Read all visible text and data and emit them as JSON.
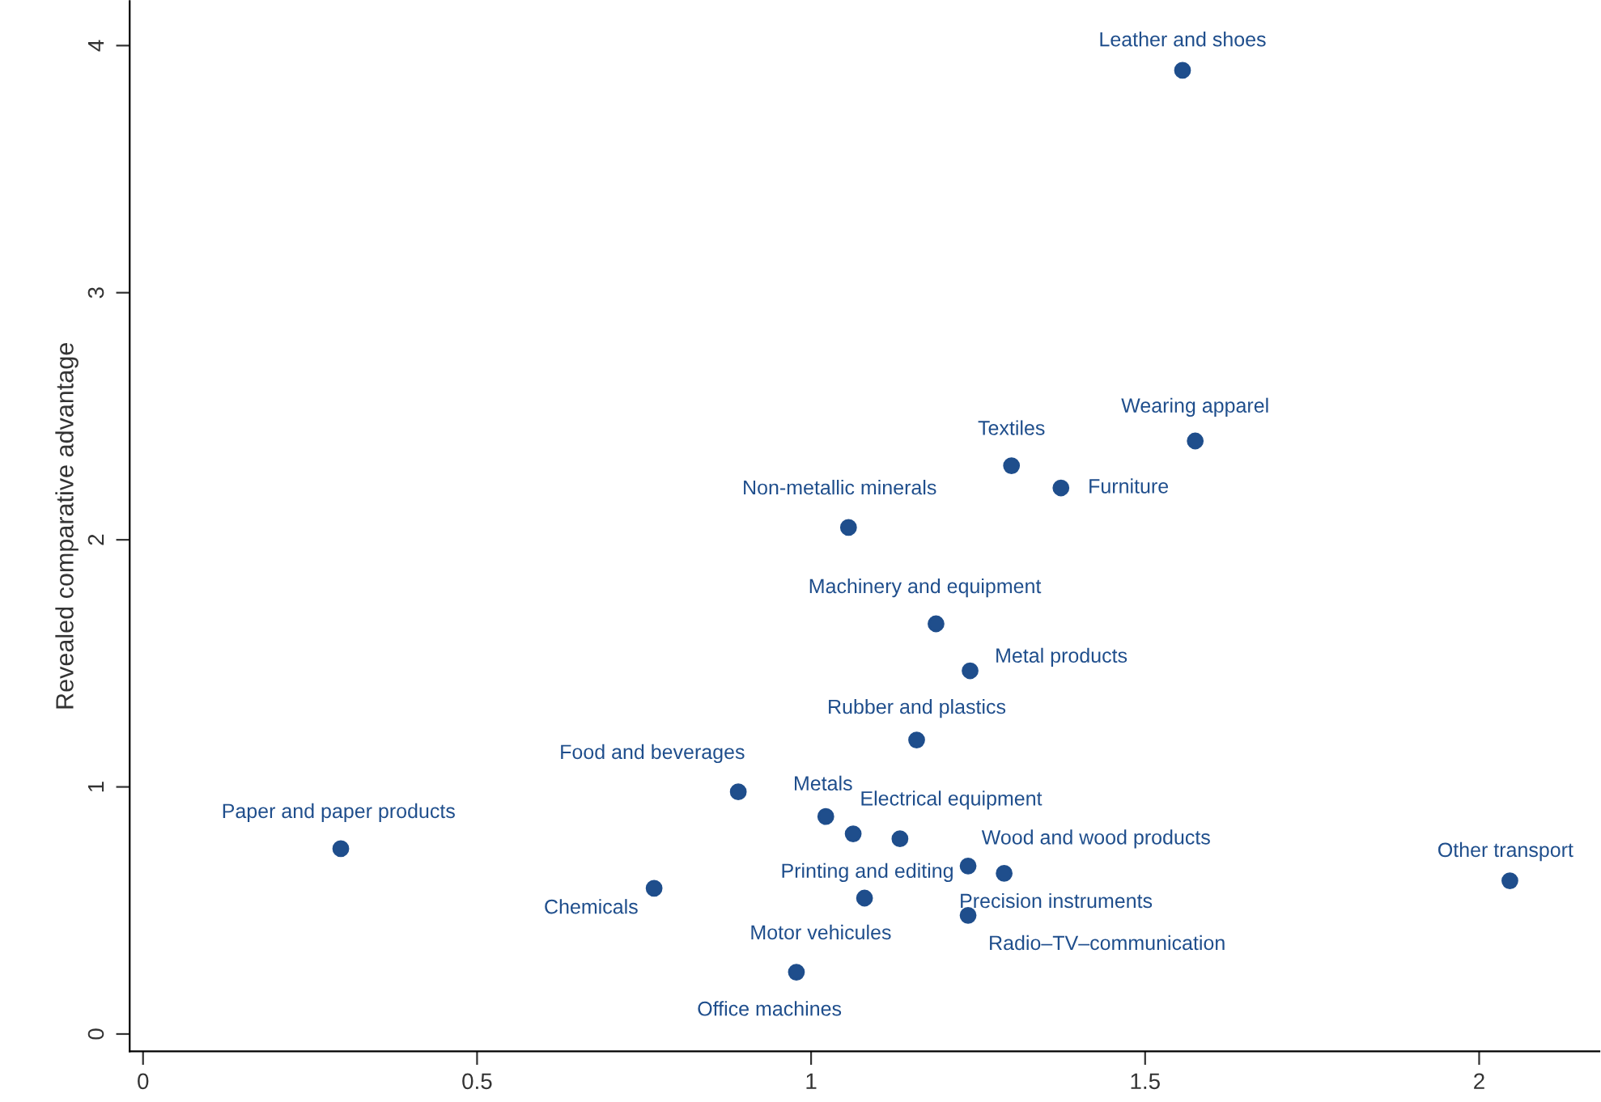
{
  "chart_data": {
    "type": "scatter",
    "ylabel": "Revealed comparative advantage",
    "xlim": [
      -0.02,
      2.18
    ],
    "ylim": [
      -0.07,
      4.18
    ],
    "xticks": [
      0,
      0.5,
      1,
      1.5,
      2
    ],
    "yticks": [
      0,
      1,
      2,
      3,
      4
    ],
    "grid": false,
    "legend": false,
    "marker": "circle",
    "series": [
      {
        "color": "#1f4e8c",
        "x": [
          1.556,
          1.575,
          1.3,
          1.374,
          1.056,
          1.187,
          1.238,
          1.158,
          0.891,
          1.022,
          1.063,
          1.133,
          1.235,
          1.289,
          1.08,
          1.235,
          0.978,
          0.765,
          0.296,
          2.046
        ],
        "values": [
          3.9,
          2.4,
          2.3,
          2.21,
          2.05,
          1.66,
          1.47,
          1.19,
          0.98,
          0.88,
          0.81,
          0.79,
          0.68,
          0.65,
          0.55,
          0.48,
          0.25,
          0.59,
          0.75,
          0.62
        ]
      }
    ],
    "annotations": [
      {
        "text": "Leather and shoes",
        "x": 1.556,
        "y": 3.9
      },
      {
        "text": "Wearing apparel",
        "x": 1.575,
        "y": 2.4
      },
      {
        "text": "Textiles",
        "x": 1.3,
        "y": 2.3
      },
      {
        "text": "Furniture",
        "x": 1.374,
        "y": 2.21
      },
      {
        "text": "Non-metallic minerals",
        "x": 1.056,
        "y": 2.05
      },
      {
        "text": "Machinery and equipment",
        "x": 1.187,
        "y": 1.66
      },
      {
        "text": "Metal products",
        "x": 1.238,
        "y": 1.47
      },
      {
        "text": "Rubber and plastics",
        "x": 1.158,
        "y": 1.19
      },
      {
        "text": "Food and beverages",
        "x": 0.891,
        "y": 0.98
      },
      {
        "text": "Metals",
        "x": 1.022,
        "y": 0.88
      },
      {
        "text": "Electrical equipment",
        "x": 1.063,
        "y": 0.81
      },
      {
        "text": "Printing and editing",
        "x": 1.133,
        "y": 0.79
      },
      {
        "text": "Wood and wood products",
        "x": 1.235,
        "y": 0.68
      },
      {
        "text": "Precision instruments",
        "x": 1.289,
        "y": 0.65
      },
      {
        "text": "Motor vehicules",
        "x": 1.08,
        "y": 0.55
      },
      {
        "text": "Radio–TV–communication",
        "x": 1.235,
        "y": 0.48
      },
      {
        "text": "Office machines",
        "x": 0.978,
        "y": 0.25
      },
      {
        "text": "Chemicals",
        "x": 0.765,
        "y": 0.59
      },
      {
        "text": "Paper and paper products",
        "x": 0.296,
        "y": 0.75
      },
      {
        "text": "Other transport",
        "x": 2.046,
        "y": 0.62
      }
    ]
  }
}
